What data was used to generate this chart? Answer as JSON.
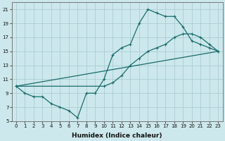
{
  "xlabel": "Humidex (Indice chaleur)",
  "bg_color": "#cce8ec",
  "grid_color": "#aacdd4",
  "line_color": "#1a6b6b",
  "xlim": [
    -0.5,
    23.5
  ],
  "ylim": [
    5,
    22
  ],
  "xticks": [
    0,
    1,
    2,
    3,
    4,
    5,
    6,
    7,
    8,
    9,
    10,
    11,
    12,
    13,
    14,
    15,
    16,
    17,
    18,
    19,
    20,
    21,
    22,
    23
  ],
  "yticks": [
    5,
    7,
    9,
    11,
    13,
    15,
    17,
    19,
    21
  ],
  "lines": [
    {
      "x": [
        0,
        1,
        2,
        3,
        4,
        5,
        6,
        7,
        8,
        9,
        10,
        11,
        12,
        13,
        14,
        15,
        16,
        17,
        18,
        19,
        20,
        21,
        22,
        23
      ],
      "y": [
        10,
        9,
        8.5,
        8.5,
        7.5,
        7,
        6.5,
        5.5,
        9,
        9,
        11,
        14.5,
        15.5,
        16,
        19,
        21,
        20.5,
        20,
        20,
        18.5,
        16.5,
        16,
        15.5,
        15
      ],
      "markers": true
    },
    {
      "x": [
        0,
        10,
        11,
        12,
        13,
        14,
        15,
        16,
        17,
        18,
        19,
        20,
        21,
        22,
        23
      ],
      "y": [
        10,
        10,
        10.5,
        11.5,
        13,
        14,
        15,
        15.5,
        16,
        17,
        17.5,
        17.5,
        17,
        16,
        15
      ],
      "markers": true
    },
    {
      "x": [
        0,
        23
      ],
      "y": [
        10,
        15
      ],
      "markers": false
    }
  ]
}
